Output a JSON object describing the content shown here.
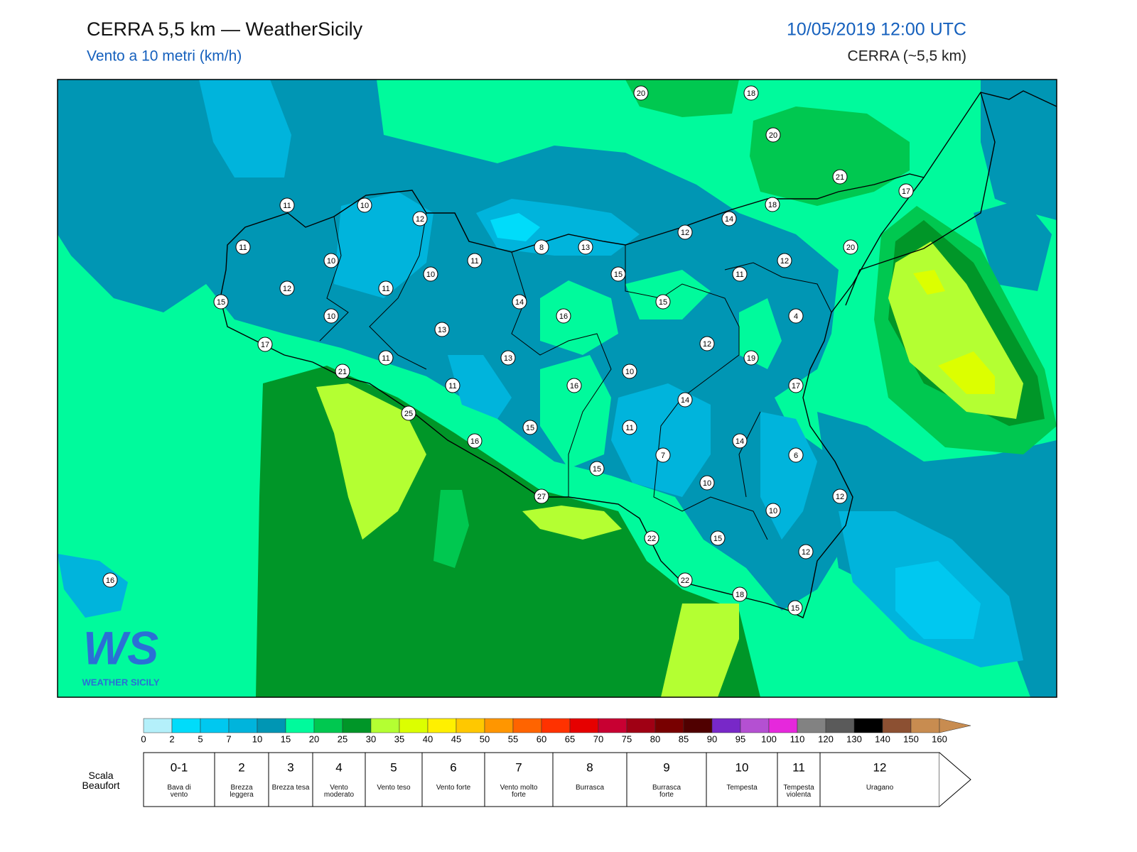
{
  "header": {
    "title": "CERRA 5,5 km — WeatherSicily",
    "subtitle": "Vento a 10 metri (km/h)",
    "datetime": "10/05/2019 12:00 UTC",
    "model": "CERRA (~5,5 km)"
  },
  "map": {
    "station_values": [
      20,
      18,
      20,
      21,
      17,
      11,
      10,
      18,
      12,
      14,
      12,
      11,
      8,
      13,
      20,
      10,
      11,
      12,
      15,
      10,
      11,
      12,
      11,
      15,
      14,
      15,
      16,
      10,
      4,
      13,
      17,
      12,
      11,
      13,
      19,
      10,
      21,
      11,
      16,
      17,
      14,
      25,
      15,
      11,
      16,
      14,
      7,
      6,
      15,
      10,
      27,
      12,
      10,
      22,
      15,
      12,
      16,
      22,
      18,
      15
    ],
    "logo": {
      "mark": "WS",
      "text": "WEATHER SICILY"
    }
  },
  "colorbar": {
    "bounds": [
      0,
      2,
      5,
      7,
      10,
      15,
      20,
      25,
      30,
      35,
      40,
      45,
      50,
      55,
      60,
      65,
      70,
      75,
      80,
      85,
      90,
      95,
      100,
      110,
      120,
      130,
      140,
      150,
      160
    ],
    "colors": [
      "#b4f0fa",
      "#00dcfa",
      "#00c8f0",
      "#00b4dc",
      "#0096b4",
      "#00fa9c",
      "#00c850",
      "#009628",
      "#b4ff32",
      "#dcff00",
      "#fff000",
      "#ffc800",
      "#ff9600",
      "#ff6400",
      "#ff3200",
      "#e60000",
      "#c80032",
      "#a00014",
      "#780000",
      "#500000",
      "#7828c8",
      "#b450d2",
      "#e628dc",
      "#828282",
      "#5a5a5a",
      "#000000",
      "#8c5032",
      "#c88c50"
    ]
  },
  "beaufort": {
    "label": "Scala Beaufort",
    "levels": [
      {
        "force": "0-1",
        "description": "Bava di vento"
      },
      {
        "force": "2",
        "description": "Brezza leggera"
      },
      {
        "force": "3",
        "description": "Brezza tesa"
      },
      {
        "force": "4",
        "description": "Vento moderato"
      },
      {
        "force": "5",
        "description": "Vento teso"
      },
      {
        "force": "6",
        "description": "Vento forte"
      },
      {
        "force": "7",
        "description": "Vento molto forte"
      },
      {
        "force": "8",
        "description": "Burrasca"
      },
      {
        "force": "9",
        "description": "Burrasca forte"
      },
      {
        "force": "10",
        "description": "Tempesta"
      },
      {
        "force": "11",
        "description": "Tempesta violenta"
      },
      {
        "force": "12",
        "description": "Uragano"
      }
    ]
  }
}
